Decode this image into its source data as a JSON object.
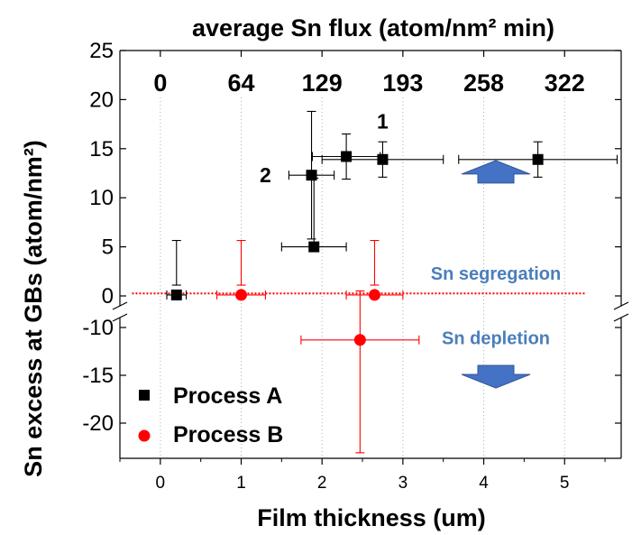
{
  "chart_data": {
    "type": "scatter",
    "title": "",
    "top_axis": {
      "title": "average Sn flux (atom/nm² min)",
      "ticks": [
        {
          "x": 0,
          "label": "0"
        },
        {
          "x": 1,
          "label": "64"
        },
        {
          "x": 2,
          "label": "129"
        },
        {
          "x": 3,
          "label": "193"
        },
        {
          "x": 4,
          "label": "258"
        },
        {
          "x": 5,
          "label": "322"
        }
      ]
    },
    "xlabel": "Film thickness (um)",
    "ylabel": "Sn excess at GBs (atom/nm²)",
    "xlim": [
      -0.5,
      5.7
    ],
    "ylim_upper": [
      0,
      25
    ],
    "ylim_lower": [
      -25,
      -10
    ],
    "x_ticks": [
      "0",
      "1",
      "2",
      "3",
      "4",
      "5"
    ],
    "y_ticks_upper": [
      "25",
      "20",
      "15",
      "10",
      "5",
      "0"
    ],
    "y_ticks_lower": [
      "-10",
      "-15",
      "-20"
    ],
    "legend_position": "bottom-left",
    "series": [
      {
        "name": "Process A",
        "marker": "square",
        "color": "#000000",
        "points": [
          {
            "x": 0.2,
            "y": 0.1,
            "xerr": 0.12,
            "yerr": 1.0
          },
          {
            "x": 1.87,
            "y": 12.3,
            "xerr": 0.28,
            "yerr": 6.5
          },
          {
            "x": 1.9,
            "y": 5.0,
            "xerr": 0.4,
            "yerr": 7.0
          },
          {
            "x": 2.3,
            "y": 14.2,
            "xerr": 0.42,
            "yerr": 2.3
          },
          {
            "x": 2.75,
            "y": 13.9,
            "xerr": 0.75,
            "yerr": 1.8
          },
          {
            "x": 4.67,
            "y": 13.9,
            "xerr": 0.98,
            "yerr": 1.8
          }
        ]
      },
      {
        "name": "Process B",
        "marker": "circle",
        "color": "#ff0000",
        "points": [
          {
            "x": 1.0,
            "y": 0.1,
            "xerr": 0.3,
            "yerr": 1.0
          },
          {
            "x": 2.65,
            "y": 0.1,
            "xerr": 0.35,
            "yerr": 1.0
          },
          {
            "x": 2.47,
            "y": -11.3,
            "xerr": 0.73,
            "yerr": 11.8
          }
        ]
      }
    ],
    "reference_line": {
      "y": 0.25,
      "from_x": -0.35,
      "to_x": 5.25,
      "color": "#ff0000",
      "style": "dotted"
    },
    "annotations": [
      {
        "text": "1",
        "x": 2.75,
        "y": 17.8
      },
      {
        "text": "2",
        "x": 1.3,
        "y": 12.3
      },
      {
        "text": "Sn segregation",
        "x": 4.15,
        "y": 2.3,
        "color": "#4a7ebb"
      },
      {
        "text": "Sn depletion",
        "x": 4.15,
        "y": -11.1,
        "color": "#4a7ebb"
      }
    ],
    "arrows": [
      {
        "direction": "up",
        "x": 4.15,
        "y": 12.6,
        "color": "#4472c4"
      },
      {
        "direction": "down",
        "x": 4.15,
        "y": -15.1,
        "color": "#4472c4"
      }
    ],
    "grid": "vertical-dotted"
  }
}
